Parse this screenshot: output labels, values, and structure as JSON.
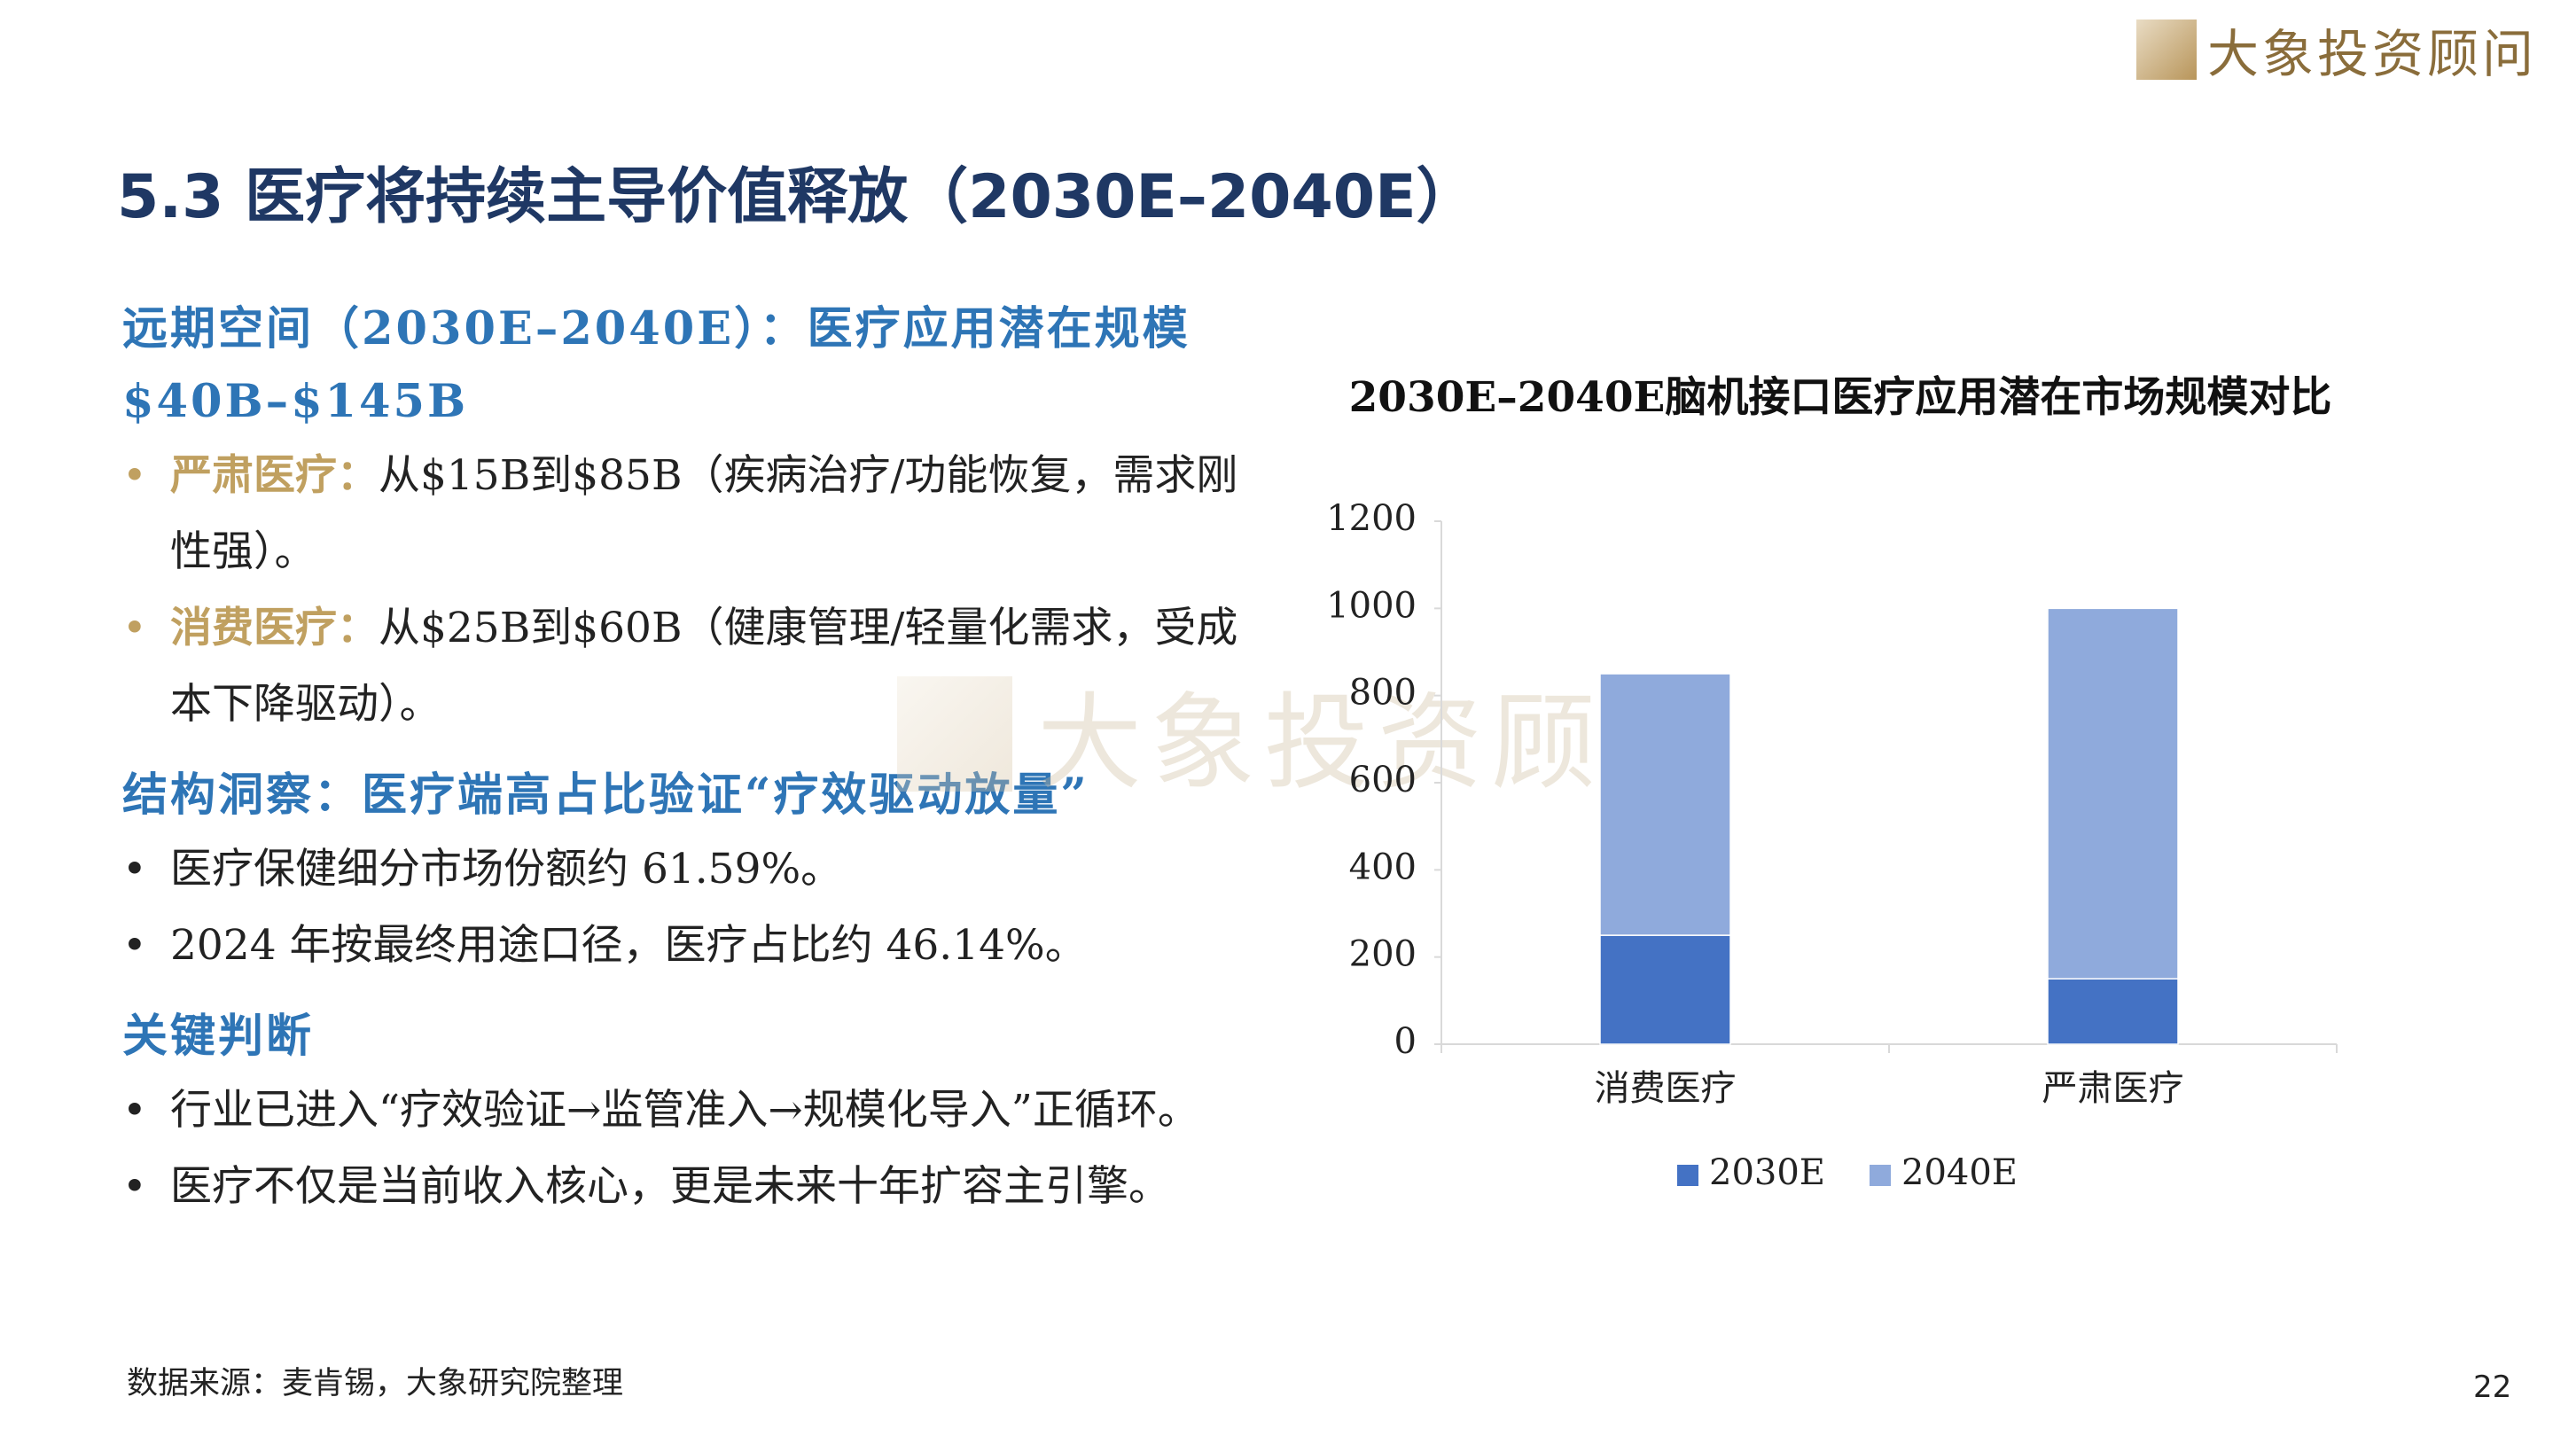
{
  "logo": "大象投资顾问",
  "watermark": "大象投资顾问",
  "title": "5.3  医疗将持续主导价值释放（2030E–2040E）",
  "sections": [
    {
      "heading": "远期空间（2030E–2040E）：医疗应用潜在规模 $40B–$145B",
      "bullets": [
        {
          "label": "严肃医疗：",
          "text": "从$15B到$85B（疾病治疗/功能恢复，需求刚性强）。"
        },
        {
          "label": "消费医疗：",
          "text": "从$25B到$60B（健康管理/轻量化需求，受成本下降驱动）。"
        }
      ]
    },
    {
      "heading": "结构洞察：医疗端高占比验证“疗效驱动放量”",
      "bullets": [
        {
          "text": "医疗保健细分市场份额约 61.59%。"
        },
        {
          "text": "2024 年按最终用途口径，医疗占比约 46.14%。"
        }
      ]
    },
    {
      "heading": "关键判断",
      "bullets": [
        {
          "text": "行业已进入“疗效验证→监管准入→规模化导入”正循环。"
        },
        {
          "text": "医疗不仅是当前收入核心，更是未来十年扩容主引擎。"
        }
      ]
    }
  ],
  "source": "数据来源：麦肯锡，大象研究院整理",
  "page_number": "22",
  "chart_data": {
    "type": "stacked-bar",
    "title": "2030E–2040E脑机接口医疗应用潜在市场规模对比",
    "categories": [
      "消费医疗",
      "严肃医疗"
    ],
    "series": [
      {
        "name": "2030E",
        "color": "#4472c4",
        "values": [
          250,
          150
        ]
      },
      {
        "name": "2040E",
        "color": "#8faadc",
        "values": [
          600,
          850
        ]
      }
    ],
    "ylim": [
      0,
      1200
    ],
    "yticks": [
      0,
      200,
      400,
      600,
      800,
      1000,
      1200
    ],
    "grid": false,
    "legend": "bottom"
  }
}
